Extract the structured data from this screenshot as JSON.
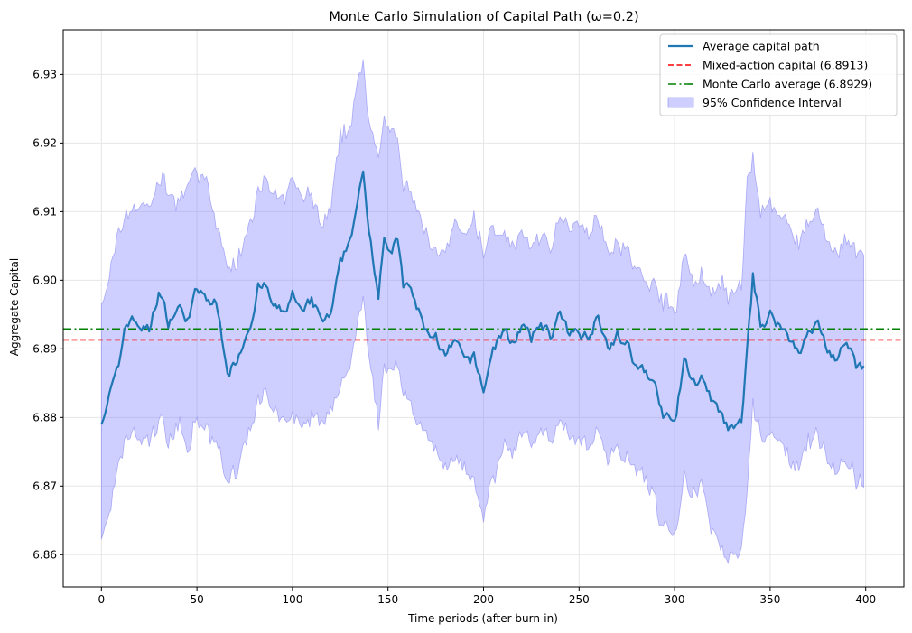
{
  "chart_data": {
    "type": "line",
    "title": "Monte Carlo Simulation of Capital Path (ω=0.2)",
    "xlabel": "Time periods (after burn-in)",
    "ylabel": "Aggregate Capital",
    "xlim": [
      -20,
      420
    ],
    "ylim": [
      6.8553,
      6.9365
    ],
    "x_ticks": [
      0,
      50,
      100,
      150,
      200,
      250,
      300,
      350,
      400
    ],
    "y_ticks": [
      6.86,
      6.87,
      6.88,
      6.89,
      6.9,
      6.91,
      6.92,
      6.93
    ],
    "y_tick_labels": [
      "6.86",
      "6.87",
      "6.88",
      "6.89",
      "6.90",
      "6.91",
      "6.92",
      "6.93"
    ],
    "grid": true,
    "legend_position": "top-right",
    "n_periods": 400,
    "colors": {
      "average_path": "#1f77b4",
      "mixed_action": "#ff0000",
      "mc_average": "#008000",
      "band_fill": "#8080ff",
      "grid": "#e6e6e6"
    },
    "series": [
      {
        "name": "Average capital path",
        "style": "solid",
        "anchors": [
          [
            0,
            6.8798
          ],
          [
            3,
            6.8822
          ],
          [
            6,
            6.8848
          ],
          [
            9,
            6.8868
          ],
          [
            12,
            6.893
          ],
          [
            15,
            6.8945
          ],
          [
            20,
            6.8935
          ],
          [
            25,
            6.8925
          ],
          [
            30,
            6.8985
          ],
          [
            35,
            6.894
          ],
          [
            40,
            6.896
          ],
          [
            45,
            6.8945
          ],
          [
            50,
            6.8985
          ],
          [
            55,
            6.897
          ],
          [
            60,
            6.8965
          ],
          [
            63,
            6.892
          ],
          [
            67,
            6.886
          ],
          [
            72,
            6.8895
          ],
          [
            78,
            6.894
          ],
          [
            82,
            6.899
          ],
          [
            86,
            6.899
          ],
          [
            90,
            6.896
          ],
          [
            95,
            6.895
          ],
          [
            100,
            6.898
          ],
          [
            105,
            6.8945
          ],
          [
            110,
            6.897
          ],
          [
            115,
            6.894
          ],
          [
            120,
            6.8945
          ],
          [
            125,
            6.902
          ],
          [
            130,
            6.906
          ],
          [
            133,
            6.91
          ],
          [
            137,
            6.915
          ],
          [
            140,
            6.9075
          ],
          [
            145,
            6.8985
          ],
          [
            148,
            6.907
          ],
          [
            152,
            6.9035
          ],
          [
            155,
            6.906
          ],
          [
            158,
            6.899
          ],
          [
            162,
            6.8985
          ],
          [
            165,
            6.896
          ],
          [
            170,
            6.8925
          ],
          [
            175,
            6.892
          ],
          [
            180,
            6.8885
          ],
          [
            185,
            6.891
          ],
          [
            190,
            6.888
          ],
          [
            195,
            6.8885
          ],
          [
            200,
            6.884
          ],
          [
            205,
            6.89
          ],
          [
            210,
            6.8925
          ],
          [
            215,
            6.891
          ],
          [
            220,
            6.8935
          ],
          [
            225,
            6.891
          ],
          [
            230,
            6.894
          ],
          [
            235,
            6.892
          ],
          [
            240,
            6.895
          ],
          [
            245,
            6.8915
          ],
          [
            250,
            6.893
          ],
          [
            255,
            6.8915
          ],
          [
            260,
            6.8955
          ],
          [
            265,
            6.8905
          ],
          [
            270,
            6.892
          ],
          [
            275,
            6.8905
          ],
          [
            280,
            6.887
          ],
          [
            285,
            6.887
          ],
          [
            290,
            6.884
          ],
          [
            295,
            6.88
          ],
          [
            300,
            6.879
          ],
          [
            305,
            6.888
          ],
          [
            310,
            6.885
          ],
          [
            315,
            6.886
          ],
          [
            320,
            6.882
          ],
          [
            325,
            6.8795
          ],
          [
            330,
            6.878
          ],
          [
            335,
            6.879
          ],
          [
            338,
            6.89
          ],
          [
            341,
            6.9005
          ],
          [
            345,
            6.8935
          ],
          [
            350,
            6.895
          ],
          [
            355,
            6.8935
          ],
          [
            360,
            6.8915
          ],
          [
            365,
            6.89
          ],
          [
            370,
            6.892
          ],
          [
            375,
            6.8935
          ],
          [
            380,
            6.89
          ],
          [
            385,
            6.8885
          ],
          [
            390,
            6.891
          ],
          [
            395,
            6.887
          ],
          [
            399,
            6.8875
          ]
        ]
      },
      {
        "name": "Mixed-action capital (6.8913)",
        "style": "dashed",
        "value": 6.8913
      },
      {
        "name": "Monte Carlo average (6.8929)",
        "style": "dashdot",
        "value": 6.8929
      },
      {
        "name": "95% Confidence Interval",
        "style": "band",
        "upper_anchors": [
          [
            0,
            6.8965
          ],
          [
            3,
            6.899
          ],
          [
            6,
            6.903
          ],
          [
            9,
            6.906
          ],
          [
            12,
            6.9095
          ],
          [
            15,
            6.9105
          ],
          [
            20,
            6.911
          ],
          [
            25,
            6.9105
          ],
          [
            30,
            6.915
          ],
          [
            35,
            6.913
          ],
          [
            40,
            6.911
          ],
          [
            45,
            6.914
          ],
          [
            50,
            6.915
          ],
          [
            55,
            6.914
          ],
          [
            60,
            6.908
          ],
          [
            63,
            6.906
          ],
          [
            67,
            6.901
          ],
          [
            72,
            6.904
          ],
          [
            78,
            6.909
          ],
          [
            82,
            6.914
          ],
          [
            86,
            6.914
          ],
          [
            90,
            6.912
          ],
          [
            95,
            6.911
          ],
          [
            100,
            6.915
          ],
          [
            105,
            6.912
          ],
          [
            110,
            6.912
          ],
          [
            115,
            6.908
          ],
          [
            120,
            6.91
          ],
          [
            125,
            6.92
          ],
          [
            130,
            6.923
          ],
          [
            133,
            6.927
          ],
          [
            137,
            6.931
          ],
          [
            140,
            6.924
          ],
          [
            145,
            6.918
          ],
          [
            148,
            6.924
          ],
          [
            152,
            6.921
          ],
          [
            155,
            6.92
          ],
          [
            158,
            6.914
          ],
          [
            162,
            6.912
          ],
          [
            165,
            6.91
          ],
          [
            170,
            6.907
          ],
          [
            175,
            6.905
          ],
          [
            180,
            6.903
          ],
          [
            185,
            6.908
          ],
          [
            190,
            6.905
          ],
          [
            195,
            6.909
          ],
          [
            200,
            6.904
          ],
          [
            205,
            6.908
          ],
          [
            210,
            6.906
          ],
          [
            215,
            6.905
          ],
          [
            220,
            6.907
          ],
          [
            225,
            6.904
          ],
          [
            230,
            6.907
          ],
          [
            235,
            6.9055
          ],
          [
            240,
            6.909
          ],
          [
            245,
            6.9065
          ],
          [
            250,
            6.9085
          ],
          [
            255,
            6.907
          ],
          [
            260,
            6.91
          ],
          [
            265,
            6.905
          ],
          [
            270,
            6.906
          ],
          [
            275,
            6.904
          ],
          [
            280,
            6.901
          ],
          [
            285,
            6.9
          ],
          [
            290,
            6.899
          ],
          [
            295,
            6.897
          ],
          [
            300,
            6.895
          ],
          [
            305,
            6.904
          ],
          [
            310,
            6.899
          ],
          [
            315,
            6.901
          ],
          [
            320,
            6.898
          ],
          [
            325,
            6.899
          ],
          [
            330,
            6.897
          ],
          [
            335,
            6.899
          ],
          [
            338,
            6.914
          ],
          [
            341,
            6.918
          ],
          [
            345,
            6.91
          ],
          [
            350,
            6.911
          ],
          [
            355,
            6.909
          ],
          [
            360,
            6.908
          ],
          [
            365,
            6.906
          ],
          [
            370,
            6.908
          ],
          [
            375,
            6.91
          ],
          [
            380,
            6.906
          ],
          [
            385,
            6.904
          ],
          [
            390,
            6.906
          ],
          [
            395,
            6.903
          ],
          [
            399,
            6.904
          ]
        ],
        "lower_anchors": [
          [
            0,
            6.8635
          ],
          [
            3,
            6.865
          ],
          [
            6,
            6.868
          ],
          [
            9,
            6.872
          ],
          [
            12,
            6.876
          ],
          [
            15,
            6.878
          ],
          [
            20,
            6.877
          ],
          [
            25,
            6.876
          ],
          [
            30,
            6.88
          ],
          [
            35,
            6.877
          ],
          [
            40,
            6.879
          ],
          [
            45,
            6.876
          ],
          [
            50,
            6.879
          ],
          [
            55,
            6.878
          ],
          [
            60,
            6.876
          ],
          [
            63,
            6.874
          ],
          [
            67,
            6.87
          ],
          [
            72,
            6.874
          ],
          [
            78,
            6.879
          ],
          [
            82,
            6.883
          ],
          [
            86,
            6.883
          ],
          [
            90,
            6.88
          ],
          [
            95,
            6.879
          ],
          [
            100,
            6.88
          ],
          [
            105,
            6.878
          ],
          [
            110,
            6.88
          ],
          [
            115,
            6.879
          ],
          [
            120,
            6.88
          ],
          [
            125,
            6.884
          ],
          [
            130,
            6.888
          ],
          [
            133,
            6.892
          ],
          [
            137,
            6.897
          ],
          [
            140,
            6.89
          ],
          [
            145,
            6.88
          ],
          [
            148,
            6.888
          ],
          [
            152,
            6.886
          ],
          [
            155,
            6.887
          ],
          [
            158,
            6.883
          ],
          [
            162,
            6.882
          ],
          [
            165,
            6.879
          ],
          [
            170,
            6.878
          ],
          [
            175,
            6.876
          ],
          [
            180,
            6.872
          ],
          [
            185,
            6.874
          ],
          [
            190,
            6.872
          ],
          [
            195,
            6.87
          ],
          [
            200,
            6.866
          ],
          [
            205,
            6.871
          ],
          [
            210,
            6.876
          ],
          [
            215,
            6.875
          ],
          [
            220,
            6.878
          ],
          [
            225,
            6.876
          ],
          [
            230,
            6.878
          ],
          [
            235,
            6.877
          ],
          [
            240,
            6.879
          ],
          [
            245,
            6.876
          ],
          [
            250,
            6.877
          ],
          [
            255,
            6.876
          ],
          [
            260,
            6.879
          ],
          [
            265,
            6.874
          ],
          [
            270,
            6.876
          ],
          [
            275,
            6.874
          ],
          [
            280,
            6.872
          ],
          [
            285,
            6.872
          ],
          [
            290,
            6.867
          ],
          [
            295,
            6.864
          ],
          [
            300,
            6.862
          ],
          [
            305,
            6.871
          ],
          [
            310,
            6.869
          ],
          [
            315,
            6.87
          ],
          [
            320,
            6.863
          ],
          [
            325,
            6.86
          ],
          [
            330,
            6.859
          ],
          [
            335,
            6.86
          ],
          [
            338,
            6.87
          ],
          [
            341,
            6.882
          ],
          [
            345,
            6.877
          ],
          [
            350,
            6.878
          ],
          [
            355,
            6.876
          ],
          [
            360,
            6.874
          ],
          [
            365,
            6.873
          ],
          [
            370,
            6.876
          ],
          [
            375,
            6.877
          ],
          [
            380,
            6.874
          ],
          [
            385,
            6.872
          ],
          [
            390,
            6.874
          ],
          [
            395,
            6.87
          ],
          [
            399,
            6.87
          ]
        ]
      }
    ]
  }
}
